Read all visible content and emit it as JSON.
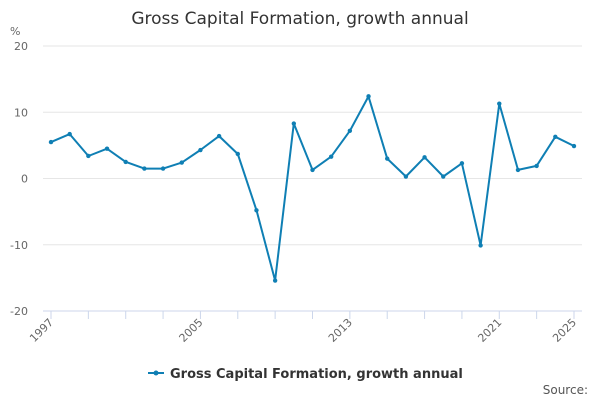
{
  "chart_data": {
    "type": "line",
    "title": "Gross Capital Formation, growth annual",
    "ylabel": "%",
    "xlabel": "",
    "ylim": [
      -20,
      20
    ],
    "yticks": [
      20,
      10,
      0,
      -10,
      -20
    ],
    "xlim": [
      1997,
      2025
    ],
    "xticks": [
      1997,
      2005,
      2013,
      2021,
      2025
    ],
    "series": [
      {
        "name": "Gross Capital Formation, growth annual",
        "color": "#0f7fb4",
        "x": [
          1997,
          1998,
          1999,
          2000,
          2001,
          2002,
          2003,
          2004,
          2005,
          2006,
          2007,
          2008,
          2009,
          2010,
          2011,
          2012,
          2013,
          2014,
          2015,
          2016,
          2017,
          2018,
          2019,
          2020,
          2021,
          2022,
          2023,
          2024,
          2025
        ],
        "values": [
          5.5,
          6.7,
          3.4,
          4.5,
          2.5,
          1.5,
          1.5,
          2.4,
          4.3,
          6.4,
          3.7,
          -4.8,
          -15.4,
          8.3,
          1.3,
          3.3,
          7.2,
          12.4,
          3.0,
          0.3,
          3.2,
          0.3,
          2.3,
          -10.1,
          11.3,
          1.3,
          1.9,
          6.3,
          4.9
        ]
      }
    ],
    "legend": {
      "label": "Gross Capital Formation, growth annual",
      "position": "bottom-center"
    },
    "source_label": "Source:"
  }
}
